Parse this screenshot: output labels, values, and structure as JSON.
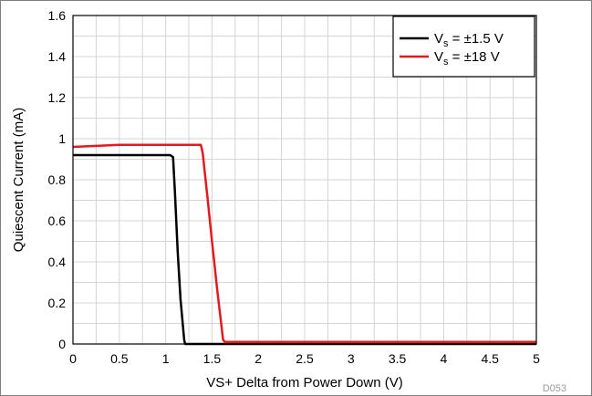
{
  "chart_data": {
    "type": "line",
    "title": "",
    "xlabel": "VS+ Delta from Power Down (V)",
    "ylabel": "Quiescent Current (mA)",
    "xlim": [
      0,
      5
    ],
    "ylim": [
      0,
      1.6
    ],
    "xticks": [
      "0",
      "0.5",
      "1",
      "1.5",
      "2",
      "2.5",
      "3",
      "3.5",
      "4",
      "4.5",
      "5"
    ],
    "yticks": [
      "0",
      "0.2",
      "0.4",
      "0.6",
      "0.8",
      "1",
      "1.2",
      "1.4",
      "1.6"
    ],
    "grid": true,
    "legend_position": "top-right",
    "series": [
      {
        "name_main": "V",
        "name_sub": "s",
        "name_rest": " = ±1.5 V",
        "color": "#000000",
        "x": [
          0,
          1.05,
          1.08,
          1.1,
          1.13,
          1.16,
          1.2,
          1.21,
          5
        ],
        "y": [
          0.92,
          0.92,
          0.91,
          0.74,
          0.45,
          0.22,
          0.02,
          0,
          0
        ]
      },
      {
        "name_main": "V",
        "name_sub": "s",
        "name_rest": " = ±18 V",
        "color": "#e31a1c",
        "x": [
          0,
          0.5,
          1.38,
          1.4,
          1.45,
          1.5,
          1.56,
          1.62,
          1.64,
          5
        ],
        "y": [
          0.96,
          0.97,
          0.97,
          0.93,
          0.72,
          0.5,
          0.25,
          0.02,
          0.01,
          0.01
        ]
      }
    ],
    "figure_tag": "D053"
  }
}
